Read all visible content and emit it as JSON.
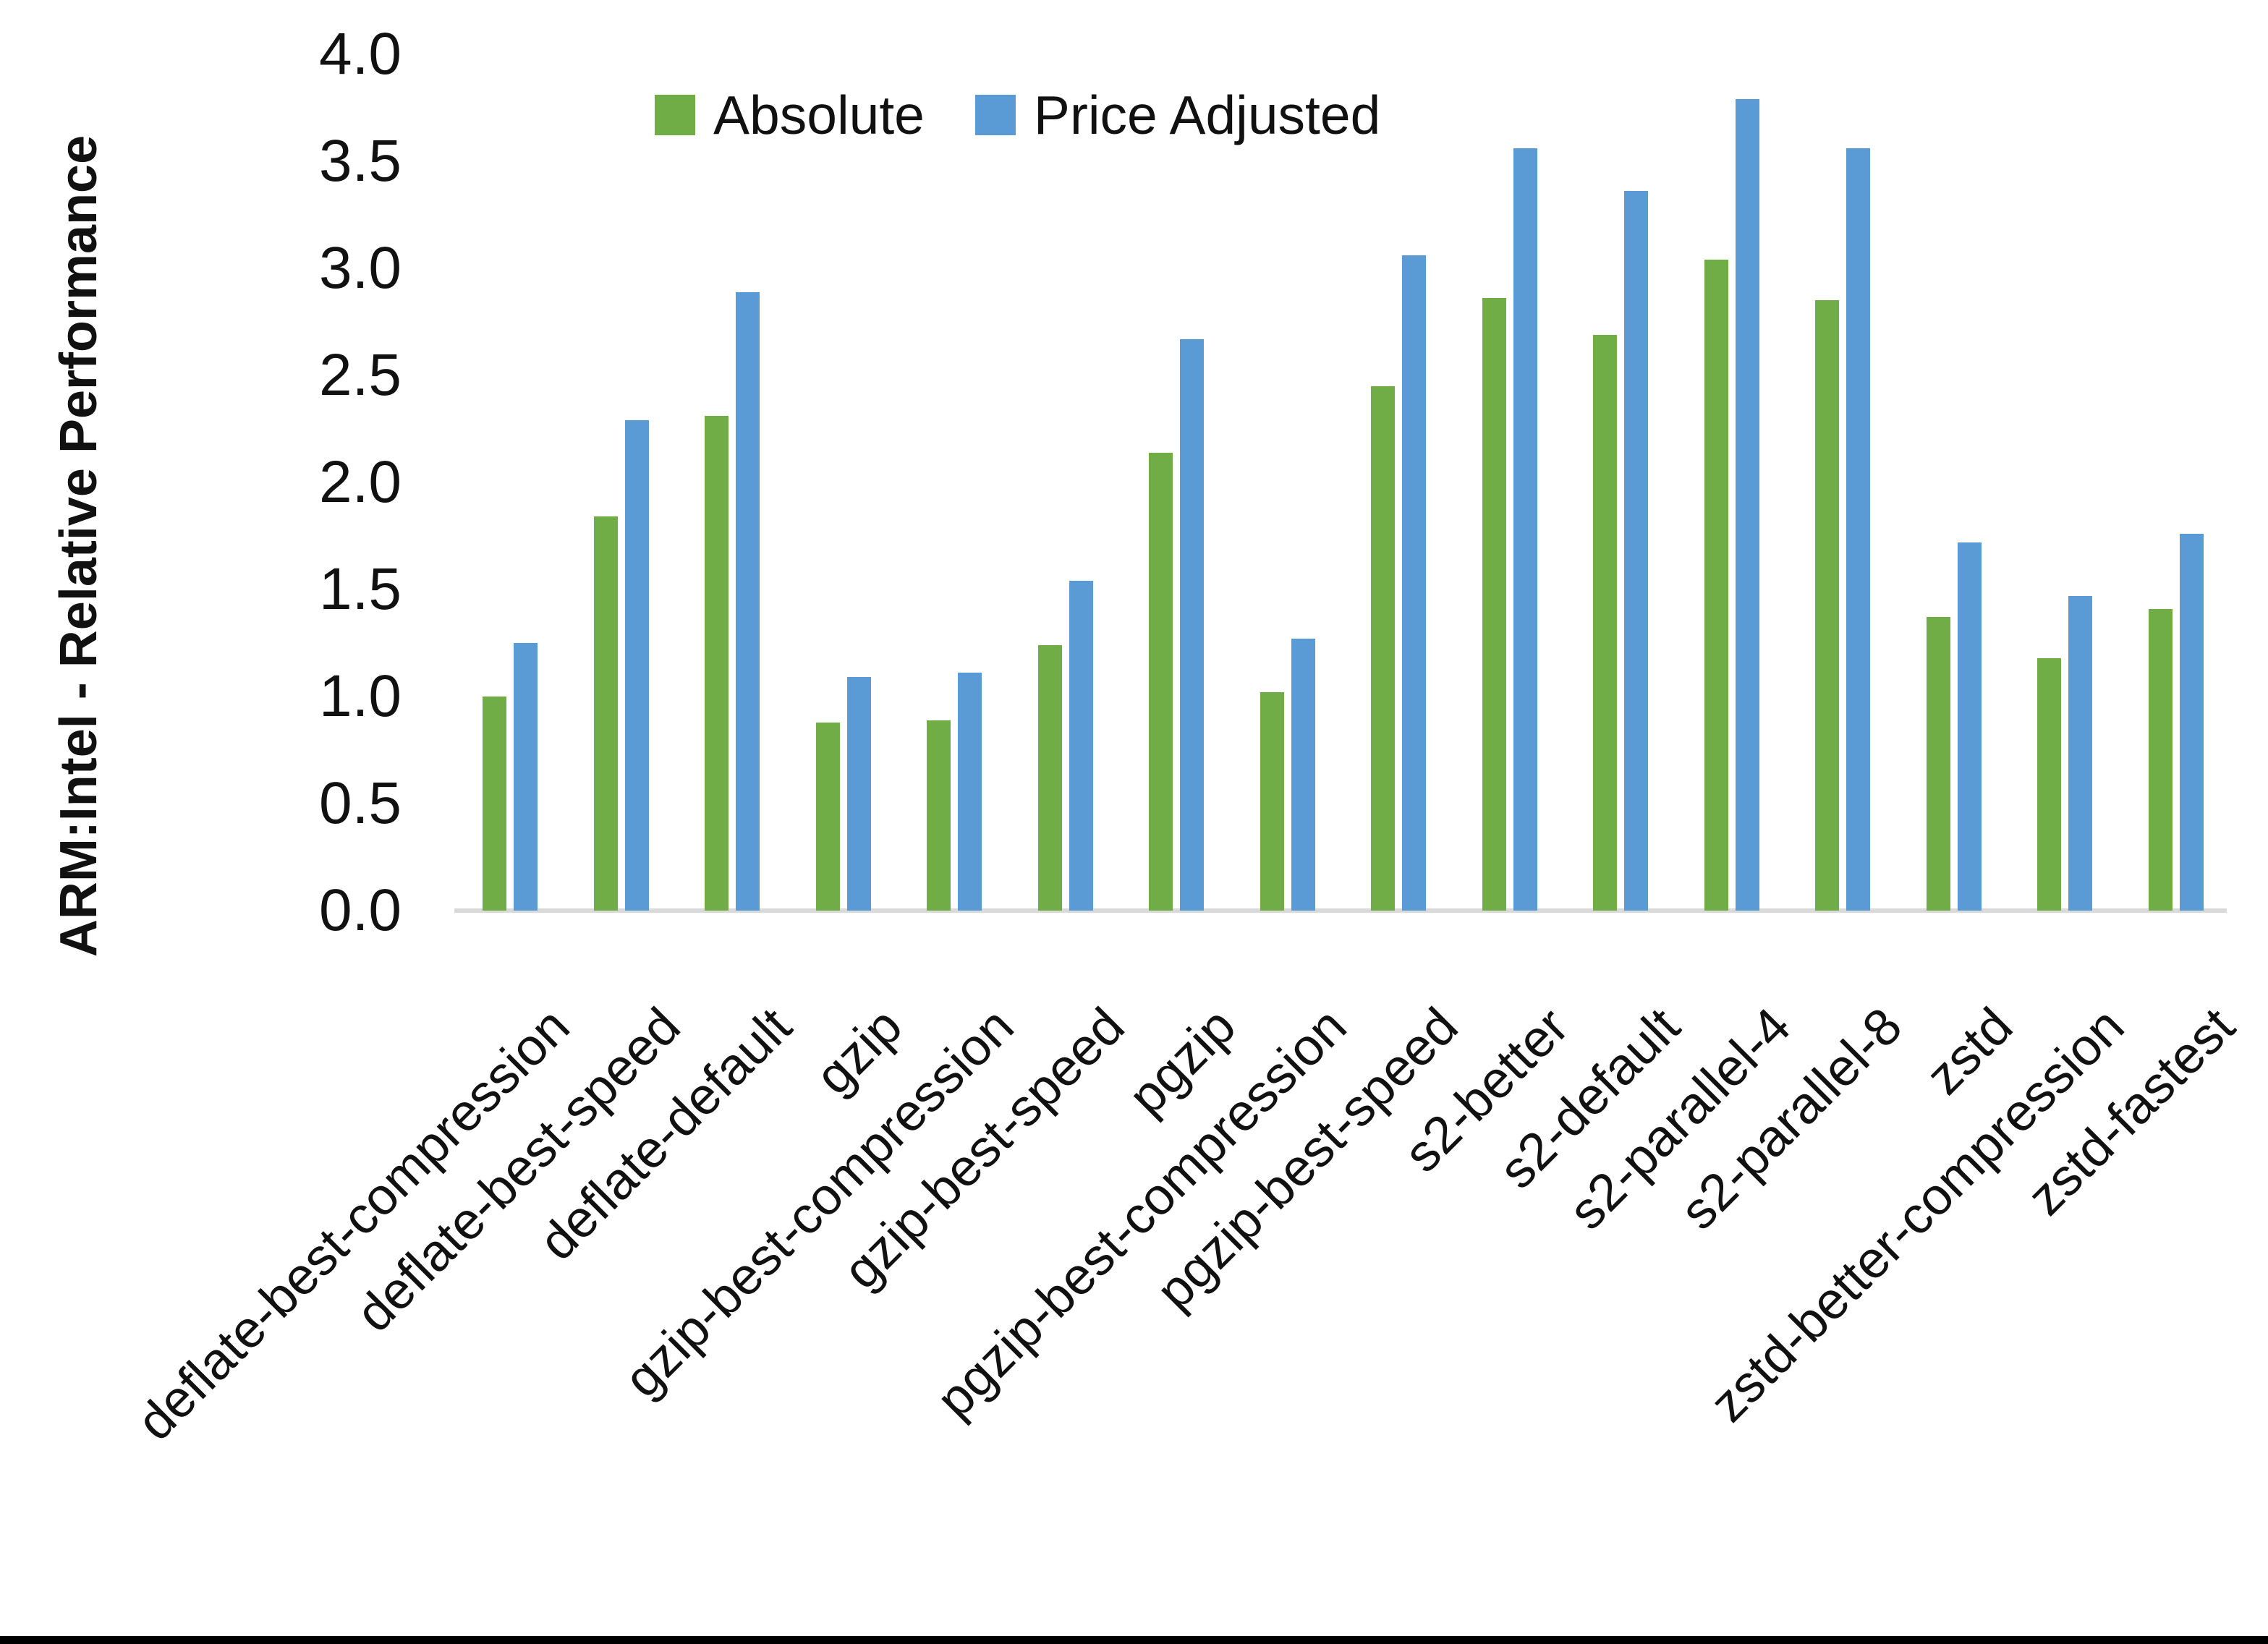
{
  "chart_data": {
    "type": "bar",
    "title": "",
    "ylabel": "ARM:Intel - Relative Performance",
    "xlabel": "",
    "ylim": [
      0.0,
      4.0
    ],
    "ytick_step": 0.5,
    "grid": false,
    "legend_position": "top",
    "categories": [
      "deflate-best-compression",
      "deflate-best-speed",
      "deflate-default",
      "gzip",
      "gzip-best-compression",
      "gzip-best-speed",
      "pgzip",
      "pgzip-best-compression",
      "pgzip-best-speed",
      "s2-better",
      "s2-default",
      "s2-parallel-4",
      "s2-parallel-8",
      "zstd",
      "zstd-better-compression",
      "zstd-fastest"
    ],
    "series": [
      {
        "name": "Absolute",
        "color": "#70AD47",
        "values": [
          1.0,
          1.84,
          2.31,
          0.88,
          0.89,
          1.24,
          2.14,
          1.02,
          2.45,
          2.86,
          2.69,
          3.04,
          2.85,
          1.37,
          1.18,
          1.41
        ]
      },
      {
        "name": "Price Adjusted",
        "color": "#5B9BD5",
        "values": [
          1.25,
          2.29,
          2.89,
          1.09,
          1.11,
          1.54,
          2.67,
          1.27,
          3.06,
          3.56,
          3.36,
          3.79,
          3.56,
          1.72,
          1.47,
          1.76
        ]
      }
    ],
    "ytick_labels": [
      "0.0",
      "0.5",
      "1.0",
      "1.5",
      "2.0",
      "2.5",
      "3.0",
      "3.5",
      "4.0"
    ],
    "axis_line_color": "#d9d9d9",
    "text_color": "#111111"
  }
}
